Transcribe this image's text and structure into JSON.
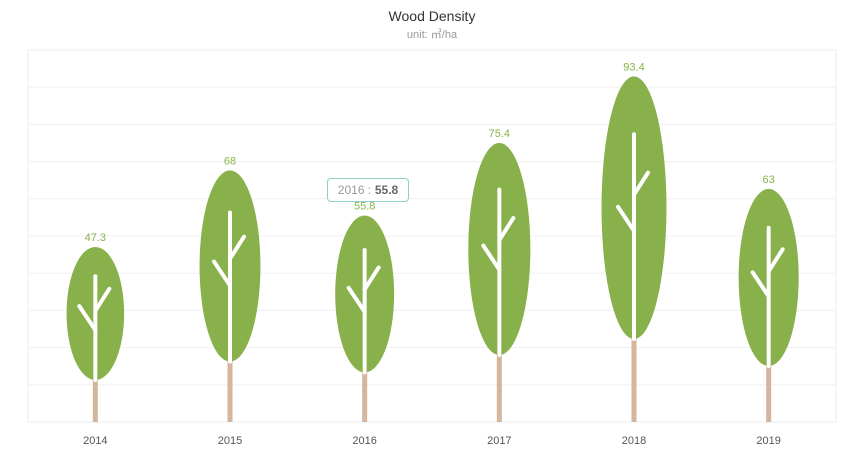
{
  "chart_data": {
    "type": "bar",
    "title": "Wood Density",
    "subtitle": "unit: ㎥/ha",
    "categories": [
      "2014",
      "2015",
      "2016",
      "2017",
      "2018",
      "2019"
    ],
    "values": [
      47.3,
      68,
      55.8,
      75.4,
      93.4,
      63
    ],
    "ylim": [
      0,
      100
    ],
    "grid": true,
    "legend": "none",
    "colors": {
      "canopy": "#88b14b",
      "trunk": "#d5b59b",
      "branch": "#ffffff",
      "label": "#86b34a"
    }
  },
  "tooltip": {
    "category": "2016",
    "separator": ":",
    "value": "55.8"
  }
}
